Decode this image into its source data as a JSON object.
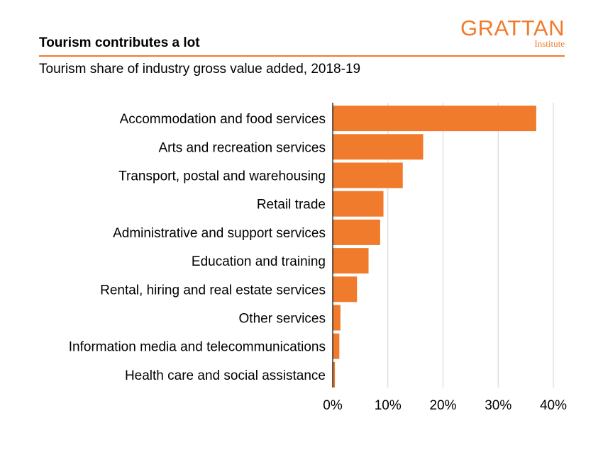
{
  "header": {
    "title": "Tourism contributes a lot",
    "subtitle": "Tourism share of industry gross value added, 2018-19",
    "logo_main": "GRATTAN",
    "logo_sub": "Institute"
  },
  "colors": {
    "accent": "#f07b2c",
    "grid": "#d9d9d9",
    "axis": "#000000"
  },
  "chart_data": {
    "type": "bar",
    "orientation": "horizontal",
    "categories": [
      "Accommodation and food services",
      "Arts and recreation services",
      "Transport, postal and warehousing",
      "Retail trade",
      "Administrative and support services",
      "Education and training",
      "Rental, hiring and real estate services",
      "Other services",
      "Information media and telecommunications",
      "Health care and social assistance"
    ],
    "values": [
      36.9,
      16.4,
      12.7,
      9.2,
      8.6,
      6.5,
      4.4,
      1.4,
      1.2,
      0.4
    ],
    "xlim": [
      0,
      40
    ],
    "ticks": [
      0,
      10,
      20,
      30,
      40
    ],
    "tick_labels": [
      "0%",
      "10%",
      "20%",
      "30%",
      "40%"
    ],
    "grid": "vertical"
  }
}
